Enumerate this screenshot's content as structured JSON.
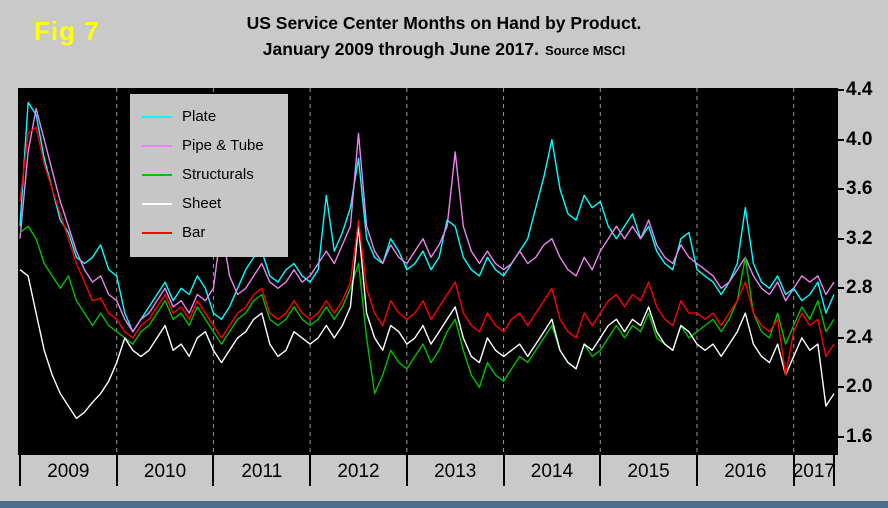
{
  "header": {
    "fig_label": "Fig 7",
    "title_line1": "US Service Center Months on Hand by Product.",
    "title_line2": "January 2009 through June 2017.",
    "source": "Source MSCI"
  },
  "colors": {
    "page_bg": "#c9c9c9",
    "plot_bg": "#000000",
    "legend_bg": "#c6c6c6",
    "grid": "#9a9a9a",
    "tick": "#000000",
    "fig_label": "#ffff00",
    "bottom_strip": "#4e6d8c"
  },
  "chart_data": {
    "type": "line",
    "title": "US Service Center Months on Hand by Product. January 2009 through June 2017.",
    "source": "Source MSCI",
    "x_frequency": "monthly",
    "x_start": "2009-01",
    "x_end": "2017-06",
    "year_labels": [
      "2009",
      "2010",
      "2011",
      "2012",
      "2013",
      "2014",
      "2015",
      "2016",
      "2017"
    ],
    "ylim": [
      1.6,
      4.4
    ],
    "y_ticks": [
      1.6,
      2.0,
      2.4,
      2.8,
      3.2,
      3.6,
      4.0,
      4.4
    ],
    "grid": "vertical dashed gridlines at year boundaries",
    "legend_position": "top-left inside plot",
    "plot_background": "#000000",
    "series": [
      {
        "name": "Plate",
        "color": "#00ffff",
        "values": [
          3.3,
          4.3,
          4.2,
          3.85,
          3.6,
          3.35,
          3.25,
          3.05,
          3.0,
          3.05,
          3.15,
          2.95,
          2.9,
          2.6,
          2.45,
          2.55,
          2.65,
          2.75,
          2.85,
          2.7,
          2.8,
          2.75,
          2.9,
          2.8,
          2.6,
          2.55,
          2.65,
          2.8,
          2.95,
          3.05,
          3.1,
          2.9,
          2.85,
          2.95,
          3.0,
          2.9,
          2.85,
          2.95,
          3.55,
          3.1,
          3.25,
          3.45,
          3.85,
          3.2,
          3.05,
          3.0,
          3.2,
          3.1,
          2.95,
          3.0,
          3.1,
          2.95,
          3.05,
          3.35,
          3.3,
          3.05,
          2.95,
          2.9,
          3.05,
          2.95,
          2.9,
          3.0,
          3.1,
          3.2,
          3.45,
          3.7,
          4.0,
          3.6,
          3.4,
          3.35,
          3.55,
          3.45,
          3.5,
          3.3,
          3.2,
          3.3,
          3.4,
          3.2,
          3.3,
          3.1,
          3.0,
          2.95,
          3.2,
          3.25,
          2.95,
          2.9,
          2.85,
          2.75,
          2.85,
          3.0,
          3.45,
          3.0,
          2.85,
          2.8,
          2.9,
          2.75,
          2.8,
          2.7,
          2.75,
          2.85,
          2.6,
          2.75
        ]
      },
      {
        "name": "Pipe & Tube",
        "color": "#ee82ee",
        "values": [
          3.2,
          3.9,
          4.25,
          4.0,
          3.75,
          3.5,
          3.3,
          3.1,
          2.95,
          2.85,
          2.9,
          2.75,
          2.7,
          2.55,
          2.45,
          2.55,
          2.6,
          2.7,
          2.8,
          2.65,
          2.7,
          2.6,
          2.75,
          2.7,
          2.8,
          3.3,
          2.9,
          2.75,
          2.8,
          2.9,
          3.0,
          2.85,
          2.8,
          2.85,
          2.95,
          2.85,
          2.9,
          3.0,
          3.1,
          3.0,
          3.15,
          3.3,
          4.05,
          3.3,
          3.1,
          3.0,
          3.15,
          3.05,
          3.0,
          3.1,
          3.2,
          3.05,
          3.15,
          3.3,
          3.9,
          3.3,
          3.1,
          3.0,
          3.1,
          3.0,
          2.95,
          3.0,
          3.1,
          3.0,
          3.05,
          3.15,
          3.2,
          3.05,
          2.95,
          2.9,
          3.05,
          2.95,
          3.1,
          3.2,
          3.3,
          3.2,
          3.3,
          3.2,
          3.35,
          3.15,
          3.05,
          3.0,
          3.15,
          3.05,
          3.0,
          2.95,
          2.9,
          2.8,
          2.85,
          2.95,
          3.05,
          2.9,
          2.8,
          2.75,
          2.85,
          2.7,
          2.8,
          2.9,
          2.85,
          2.9,
          2.75,
          2.85
        ]
      },
      {
        "name": "Structurals",
        "color": "#00c000",
        "values": [
          3.25,
          3.3,
          3.2,
          3.0,
          2.9,
          2.8,
          2.9,
          2.7,
          2.6,
          2.5,
          2.6,
          2.5,
          2.45,
          2.4,
          2.35,
          2.45,
          2.5,
          2.6,
          2.7,
          2.55,
          2.6,
          2.5,
          2.65,
          2.55,
          2.45,
          2.35,
          2.45,
          2.55,
          2.6,
          2.7,
          2.75,
          2.55,
          2.5,
          2.55,
          2.65,
          2.55,
          2.5,
          2.55,
          2.65,
          2.55,
          2.65,
          2.8,
          3.0,
          2.4,
          1.95,
          2.1,
          2.3,
          2.2,
          2.15,
          2.25,
          2.35,
          2.2,
          2.3,
          2.45,
          2.55,
          2.3,
          2.1,
          2.0,
          2.2,
          2.1,
          2.05,
          2.15,
          2.25,
          2.2,
          2.3,
          2.4,
          2.5,
          2.3,
          2.2,
          2.15,
          2.35,
          2.25,
          2.3,
          2.4,
          2.5,
          2.4,
          2.5,
          2.45,
          2.6,
          2.4,
          2.35,
          2.3,
          2.5,
          2.4,
          2.45,
          2.5,
          2.55,
          2.45,
          2.55,
          2.7,
          3.05,
          2.6,
          2.45,
          2.4,
          2.6,
          2.35,
          2.5,
          2.65,
          2.55,
          2.7,
          2.45,
          2.55
        ]
      },
      {
        "name": "Sheet",
        "color": "#ffffff",
        "values": [
          2.95,
          2.9,
          2.6,
          2.3,
          2.1,
          1.95,
          1.85,
          1.75,
          1.8,
          1.88,
          1.95,
          2.05,
          2.2,
          2.4,
          2.3,
          2.25,
          2.3,
          2.4,
          2.5,
          2.3,
          2.35,
          2.25,
          2.4,
          2.45,
          2.3,
          2.2,
          2.3,
          2.4,
          2.45,
          2.55,
          2.6,
          2.35,
          2.25,
          2.3,
          2.45,
          2.4,
          2.35,
          2.4,
          2.5,
          2.4,
          2.5,
          2.65,
          3.3,
          2.6,
          2.4,
          2.3,
          2.5,
          2.45,
          2.35,
          2.4,
          2.5,
          2.35,
          2.45,
          2.55,
          2.65,
          2.4,
          2.25,
          2.2,
          2.4,
          2.3,
          2.25,
          2.3,
          2.35,
          2.25,
          2.35,
          2.45,
          2.55,
          2.3,
          2.2,
          2.15,
          2.35,
          2.3,
          2.4,
          2.5,
          2.55,
          2.45,
          2.55,
          2.5,
          2.65,
          2.45,
          2.35,
          2.3,
          2.5,
          2.45,
          2.35,
          2.3,
          2.35,
          2.25,
          2.35,
          2.45,
          2.6,
          2.35,
          2.25,
          2.2,
          2.35,
          2.1,
          2.25,
          2.4,
          2.3,
          2.35,
          1.85,
          1.95
        ]
      },
      {
        "name": "Bar",
        "color": "#ff0000",
        "values": [
          3.5,
          4.05,
          4.1,
          3.8,
          3.6,
          3.4,
          3.2,
          3.0,
          2.85,
          2.7,
          2.72,
          2.6,
          2.55,
          2.45,
          2.4,
          2.5,
          2.55,
          2.65,
          2.75,
          2.6,
          2.65,
          2.55,
          2.7,
          2.6,
          2.5,
          2.4,
          2.5,
          2.6,
          2.65,
          2.75,
          2.8,
          2.6,
          2.55,
          2.6,
          2.7,
          2.6,
          2.55,
          2.6,
          2.7,
          2.6,
          2.7,
          2.85,
          3.35,
          2.8,
          2.6,
          2.5,
          2.7,
          2.6,
          2.55,
          2.6,
          2.7,
          2.55,
          2.65,
          2.75,
          2.85,
          2.6,
          2.5,
          2.45,
          2.6,
          2.5,
          2.45,
          2.55,
          2.6,
          2.5,
          2.6,
          2.7,
          2.8,
          2.55,
          2.45,
          2.4,
          2.6,
          2.5,
          2.6,
          2.7,
          2.75,
          2.65,
          2.75,
          2.7,
          2.85,
          2.65,
          2.55,
          2.5,
          2.7,
          2.6,
          2.6,
          2.55,
          2.6,
          2.5,
          2.6,
          2.7,
          2.85,
          2.6,
          2.5,
          2.45,
          2.55,
          2.1,
          2.45,
          2.6,
          2.5,
          2.55,
          2.25,
          2.35
        ]
      }
    ]
  }
}
